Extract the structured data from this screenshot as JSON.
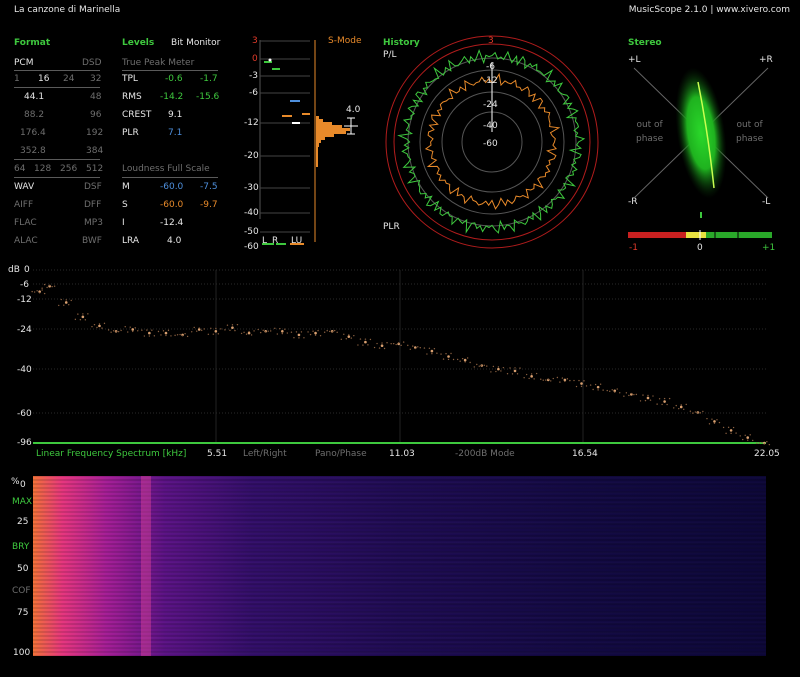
{
  "app": {
    "track_title": "La canzone di Marinella",
    "product": "MusicScope 2.1.0 | www.xivero.com"
  },
  "format": {
    "title": "Format",
    "pcm": "PCM",
    "dsd": "DSD",
    "bits": [
      "1",
      "16",
      "24",
      "32"
    ],
    "rates": [
      "44.1",
      "48",
      "88.2",
      "96",
      "176.4",
      "192",
      "352.8",
      "384"
    ],
    "dsd_rates": [
      "64",
      "128",
      "256",
      "512"
    ],
    "files": [
      [
        "WAV",
        "DSF"
      ],
      [
        "AIFF",
        "DFF"
      ],
      [
        "FLAC",
        "MP3"
      ],
      [
        "ALAC",
        "BWF"
      ]
    ]
  },
  "levels": {
    "title": "Levels",
    "bit_monitor": "Bit Monitor",
    "tpm_title": "True Peak Meter",
    "rows": [
      {
        "label": "TPL",
        "left": "-0.6",
        "right": "-1.7"
      },
      {
        "label": "RMS",
        "left": "-14.2",
        "right": "-15.6"
      },
      {
        "label": "CREST",
        "left": "9.1",
        "right": ""
      },
      {
        "label": "PLR",
        "left": "7.1",
        "right": ""
      }
    ],
    "loudness_title": "Loudness Full Scale",
    "loudness": [
      {
        "label": "M",
        "left": "-60.0",
        "right": "-7.5"
      },
      {
        "label": "S",
        "left": "-60.0",
        "right": "-9.7"
      },
      {
        "label": "I",
        "left": "-12.4",
        "right": ""
      },
      {
        "label": "LRA",
        "left": "4.0",
        "right": ""
      }
    ]
  },
  "meter": {
    "mode": "S-Mode",
    "ticks": [
      "3",
      "0",
      "-3",
      "-6",
      "-12",
      "-20",
      "-30",
      "-40",
      "-50",
      "-60"
    ],
    "value": "4.0",
    "channels": [
      "L",
      "R",
      "LU"
    ]
  },
  "history": {
    "title": "History",
    "pl": "P/L",
    "plr": "PLR",
    "ring_labels": [
      "3",
      "-6",
      "-12",
      "-24",
      "-40",
      "-60"
    ]
  },
  "stereo": {
    "title": "Stereo",
    "plus_l": "+L",
    "plus_r": "+R",
    "minus_r": "-R",
    "minus_l": "-L",
    "out_of_phase": "out of\nphase",
    "scale": [
      "-1",
      "0",
      "+1"
    ]
  },
  "spectrum": {
    "unit": "dB",
    "y_ticks": [
      "0",
      "-6",
      "-12",
      "-24",
      "-40",
      "-60",
      "-96"
    ],
    "x_ticks": [
      "5.51",
      "11.03",
      "16.54",
      "22.05"
    ],
    "title": "Linear Frequency Spectrum [kHz]",
    "modes": [
      "Left/Right",
      "Pano/Phase",
      "-200dB Mode"
    ]
  },
  "chart_data": {
    "type": "scatter",
    "title": "Linear Frequency Spectrum [kHz]",
    "xlabel": "Linear Frequency Spectrum [kHz]",
    "ylabel": "dB",
    "xlim": [
      0,
      22.05
    ],
    "ylim": [
      -96,
      0
    ],
    "x": [
      0.2,
      0.5,
      1.0,
      1.5,
      2.0,
      2.5,
      3.0,
      3.5,
      4.0,
      4.5,
      5.0,
      5.5,
      6.0,
      6.5,
      7.0,
      7.5,
      8.0,
      8.5,
      9.0,
      9.5,
      10.0,
      10.5,
      11.0,
      11.5,
      12.0,
      12.5,
      13.0,
      13.5,
      14.0,
      14.5,
      15.0,
      15.5,
      16.0,
      16.5,
      17.0,
      17.5,
      18.0,
      18.5,
      19.0,
      19.5,
      20.0,
      20.5,
      21.0,
      21.5,
      22.0
    ],
    "y": [
      -12,
      -9,
      -18,
      -26,
      -31,
      -34,
      -33,
      -35,
      -35,
      -36,
      -33,
      -34,
      -32,
      -35,
      -34,
      -34,
      -36,
      -35,
      -34,
      -37,
      -40,
      -42,
      -41,
      -43,
      -45,
      -48,
      -50,
      -53,
      -55,
      -56,
      -59,
      -61,
      -61,
      -63,
      -65,
      -67,
      -69,
      -71,
      -73,
      -76,
      -79,
      -84,
      -89,
      -93,
      -96
    ],
    "grid": true
  },
  "spectrogram": {
    "y_ticks": [
      "%",
      "0",
      "25",
      "50",
      "75",
      "100"
    ],
    "labels": [
      "MAX",
      "BRY",
      "COF"
    ]
  },
  "colors": {
    "accent": "#3ec83e",
    "label_green": "#2fb82f",
    "orange": "#e88a2a",
    "blue": "#4e8fdc",
    "red": "#c82020"
  }
}
